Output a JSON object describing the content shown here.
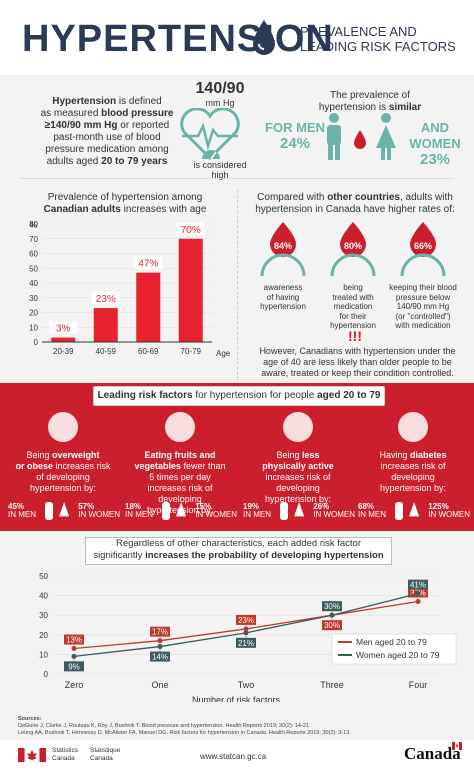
{
  "header": {
    "title": "HYPERTENSION",
    "subtitle_line1": "PREVALENCE AND",
    "subtitle_line2": "LEADING RISK FACTORS"
  },
  "definition": {
    "term": "Hypertension",
    "text1": " is defined",
    "text2": "as measured ",
    "bold2": "blood pressure",
    "bold3": "≥140/90 mm Hg",
    "text3": " or reported",
    "text4": "past-month use of blood",
    "text5": "pressure medication among",
    "text6": "adults aged ",
    "bold6": "20 to 79 years"
  },
  "bp": {
    "value": "140/90",
    "unit": "mm Hg",
    "caption1": "is considered",
    "caption2": "high"
  },
  "similar": {
    "line1": "The prevalence of",
    "line2": "hypertension is ",
    "line2_bold": "similar",
    "men_label": "FOR MEN",
    "men_value": "24%",
    "women_label": "AND WOMEN",
    "women_value": "23%"
  },
  "chart_data": [
    {
      "type": "bar",
      "title_line1": "Prevalence of hypertension among",
      "title_line2_bold": "Canadian adults",
      "title_line2": " increases with age",
      "ylabel": "%",
      "xlabel": "Age",
      "categories": [
        "20-39",
        "40-59",
        "60-69",
        "70-79"
      ],
      "values": [
        3,
        23,
        47,
        70
      ],
      "data_labels": [
        "3%",
        "23%",
        "47%",
        "70%"
      ],
      "ylim": [
        0,
        80
      ],
      "yticks": [
        0,
        10,
        20,
        30,
        40,
        50,
        60,
        70,
        80
      ],
      "grid": true,
      "color": "#e8232f"
    },
    {
      "type": "line",
      "title_line1": "Regardless of other characteristics, each added risk factor",
      "title_line2": "significantly ",
      "title_line2_bold": "increases the probability of developing hypertension",
      "xlabel": "Number of risk factors",
      "categories": [
        "Zero",
        "One",
        "Two",
        "Three",
        "Four"
      ],
      "series": [
        {
          "name": "Men aged 20 to 79",
          "values": [
            13,
            17,
            23,
            30,
            37
          ],
          "labels": [
            "13%",
            "17%",
            "23%",
            "30%",
            "37%"
          ],
          "color": "#c0392b"
        },
        {
          "name": "Women aged 20 to 79",
          "values": [
            9,
            14,
            21,
            30,
            41
          ],
          "labels": [
            "9%",
            "14%",
            "21%",
            "30%",
            "41%"
          ],
          "color": "#3d5a5f"
        }
      ],
      "ylim": [
        0,
        50
      ],
      "yticks": [
        0,
        10,
        20,
        30,
        40,
        50
      ],
      "grid": true,
      "legend": "bottom-right"
    }
  ],
  "compare": {
    "line1": "Compared with ",
    "line1_bold": "other countries",
    "line1b": ", adults with",
    "line2": "hypertension in Canada have higher rates of:",
    "items": [
      {
        "value": "84%",
        "l1": "awareness",
        "l2": "of having",
        "l3": "hypertension",
        "l4": "",
        "l5": ""
      },
      {
        "value": "80%",
        "l1": "being",
        "l2": "treated with",
        "l3": "medication",
        "l4": "for their",
        "l5": "hypertension"
      },
      {
        "value": "66%",
        "l1": "keeping their blood",
        "l2": "pressure below",
        "l3": "140/90 mm Hg",
        "l4": "(or \"controlled\")",
        "l5": "with medication"
      }
    ],
    "exclaim": "!!!",
    "footer1": "However, Canadians with hypertension under the",
    "footer2": "age of 40 are less likely than older people to be",
    "footer3": "aware, treated or keep their condition controlled."
  },
  "risk": {
    "banner_bold1": "Leading risk factors",
    "banner_text": " for hypertension for people ",
    "banner_bold2": "aged 20 to 79",
    "factors": [
      {
        "l1": "Being ",
        "b1": "overweight",
        "l2b": "or obese",
        "l2": " increases risk",
        "l3": "of developing",
        "l4": "hypertension by:",
        "l5": "",
        "men": "45%",
        "women": "57%"
      },
      {
        "b1": "Eating fruits and",
        "l2b": "vegetables",
        "l2": " fewer than",
        "l3": "5 times per day",
        "l4": "increases risk of developing",
        "l5": "hypertension by:",
        "men": "18%",
        "women": "15%"
      },
      {
        "l1": "Being ",
        "b1": "less",
        "l2b": "physically active",
        "l2": "",
        "l3": "increases risk of",
        "l4": "developing",
        "l5": "hypertension by:",
        "men": "19%",
        "women": "26%"
      },
      {
        "l1": "Having ",
        "b1": "diabetes",
        "l2b": "",
        "l2": "increases risk of",
        "l3": "developing",
        "l4": "hypertension by:",
        "l5": "",
        "men": "68%",
        "women": "125%"
      }
    ],
    "in_men": "IN MEN",
    "in_women": "IN WOMEN"
  },
  "sources": {
    "label": "Sources:",
    "s1": "DeGuire J, Clarke J, Rouleau K, Roy J, Bushnik T. Blood pressure and hypertension. Health Reports 2019; 30(2): 14-21.",
    "s2": "Leung AA, Bushnik T, Hennessy D, McAlister FA, Manuel DG. Risk factors for hypertension in Canada. Health Reports 2019; 30(2): 3-13."
  },
  "footer": {
    "statcan_en1": "Statistics",
    "statcan_en2": "Canada",
    "statcan_fr1": "Statistique",
    "statcan_fr2": "Canada",
    "url": "www.statcan.gc.ca",
    "wordmark": "Canada"
  }
}
